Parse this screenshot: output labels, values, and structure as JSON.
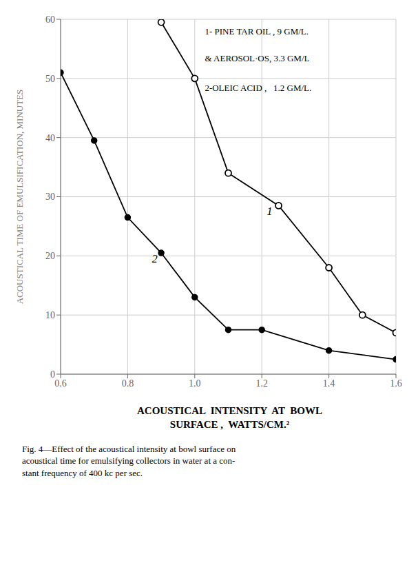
{
  "chart_data": {
    "type": "line",
    "xlabel": "ACOUSTICAL  INTENSITY  AT  BOWL\nSURFACE ,  WATTS/CM.²",
    "ylabel": "ACOUSTICAL TIME OF EMULSIFICATION,  MINUTES",
    "caption": "Fig. 4—Effect of the acoustical intensity at bowl surface on\nacoustical time for emulsifying collectors in water at a con-\nstant frequency of 400 kc per sec.",
    "series": [
      {
        "x": [
          0.9,
          1.0,
          1.1,
          1.25,
          1.4,
          1.5,
          1.6
        ],
        "values": [
          59.5,
          50.0,
          34.0,
          28.5,
          18.0,
          10.0,
          7.0
        ],
        "color": "#000000",
        "marker": "open_circle"
      },
      {
        "x": [
          0.6,
          0.7,
          0.8,
          0.9,
          1.0,
          1.1,
          1.2,
          1.4,
          1.6
        ],
        "values": [
          51.0,
          39.5,
          26.5,
          20.5,
          13.0,
          7.5,
          7.5,
          4.0,
          2.5
        ],
        "color": "#000000",
        "marker": "circle"
      }
    ],
    "xlim": [
      0.6,
      1.6
    ],
    "ylim": [
      0,
      60
    ],
    "xticks": [
      0.6,
      0.8,
      {
        "value": 1.0,
        "label": "1.0"
      },
      1.2,
      1.4,
      1.6
    ],
    "yticks": [
      0,
      10,
      20,
      30,
      40,
      50,
      60
    ],
    "grid": true,
    "annotations": [
      {
        "text": "1",
        "x": 1.215,
        "y": 27.5
      },
      {
        "text": "2",
        "x": 0.895,
        "y": 19.5
      },
      {
        "text": "1- PINE TAR OIL , 9 GM/L.",
        "x": 1.03,
        "y": 58.5
      },
      {
        "text": "& AEROSOL·OS, 3.3 GM/L",
        "x": 1.03,
        "y": 54.0
      },
      {
        "text": "2-OLEIC ACID ,   1.2 GM/L.",
        "x": 1.03,
        "y": 49.0
      }
    ]
  }
}
